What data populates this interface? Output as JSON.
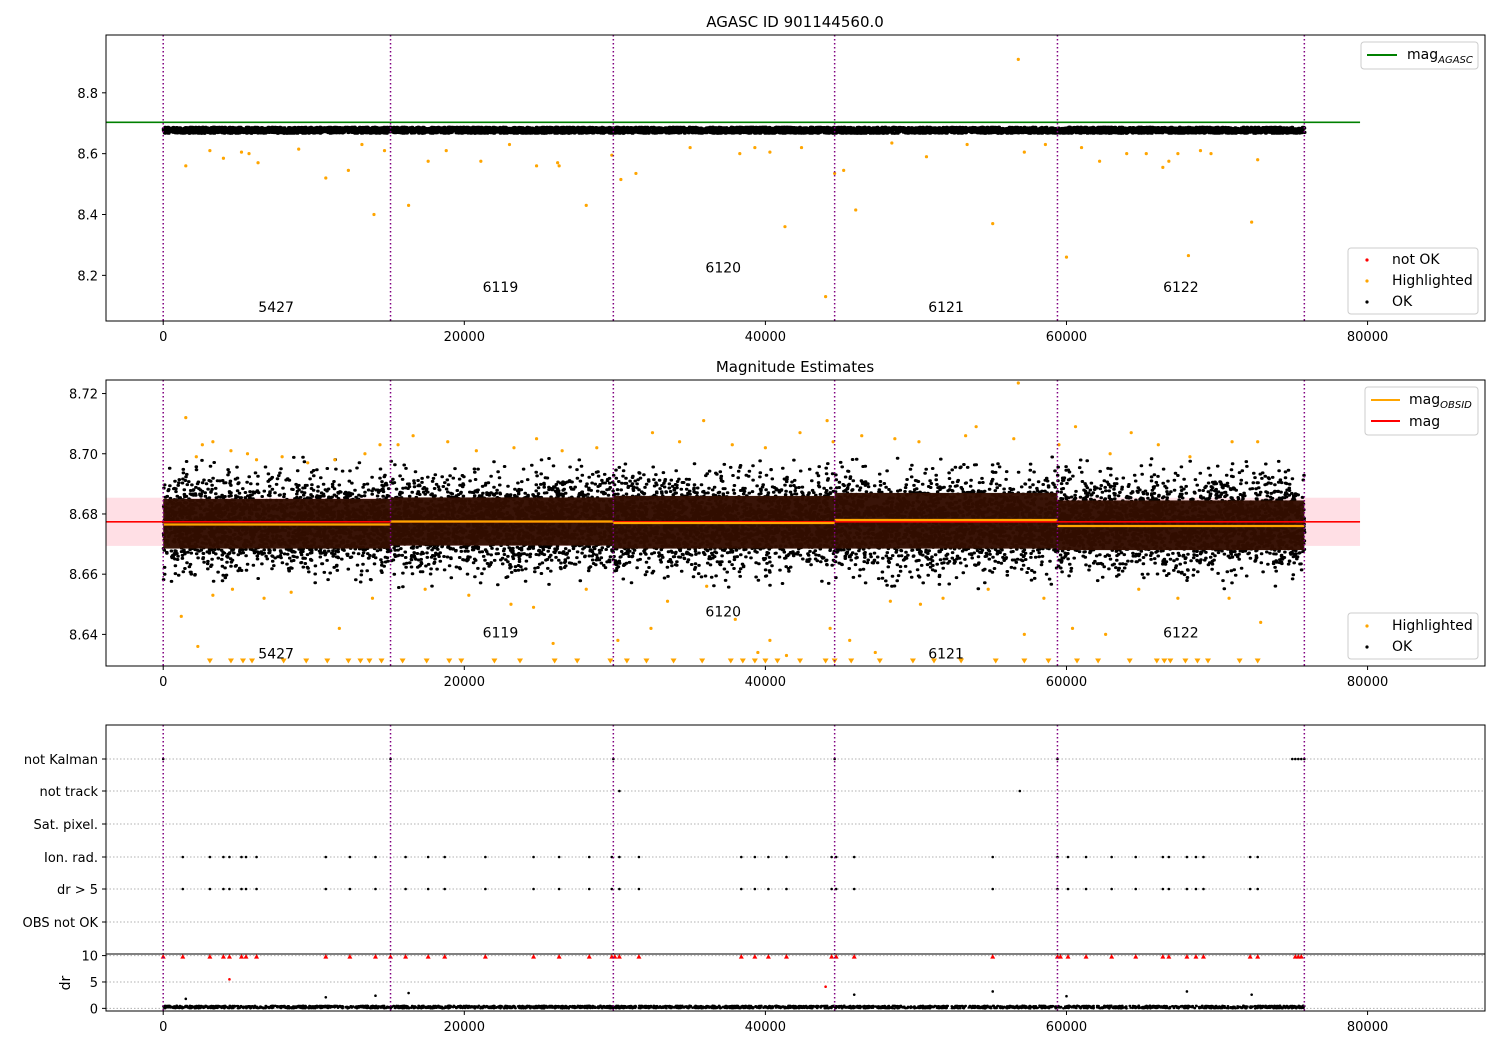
{
  "chart_data": [
    {
      "type": "scatter",
      "title": "AGASC ID 901144560.0",
      "xlim": [
        -3800,
        87800
      ],
      "ylim": [
        8.05,
        8.99
      ],
      "yticks": [
        8.2,
        8.4,
        8.6,
        8.8
      ],
      "xticks": [
        0,
        20000,
        40000,
        60000,
        80000
      ],
      "obs_boundaries": [
        0,
        15100,
        29900,
        44600,
        59400,
        75800
      ],
      "obsid_labels": [
        {
          "text": "5427",
          "x": 7500,
          "y": 8.08
        },
        {
          "text": "6119",
          "x": 22400,
          "y": 8.145
        },
        {
          "text": "6120",
          "x": 37200,
          "y": 8.21
        },
        {
          "text": "6121",
          "x": 52000,
          "y": 8.08
        },
        {
          "text": "6122",
          "x": 67600,
          "y": 8.145
        }
      ],
      "reference_line": {
        "name": "mag",
        "sub": "AGASC",
        "y": 8.703,
        "x": [
          -3800,
          79500
        ],
        "color": "#008000"
      },
      "ok_band": {
        "x": [
          0,
          75800
        ],
        "center": 8.677,
        "half_width": 0.01,
        "color": "#000000"
      },
      "highlighted_points": [
        [
          1500,
          8.56
        ],
        [
          3100,
          8.61
        ],
        [
          4000,
          8.585
        ],
        [
          5200,
          8.605
        ],
        [
          5700,
          8.6
        ],
        [
          6300,
          8.57
        ],
        [
          9000,
          8.615
        ],
        [
          10800,
          8.52
        ],
        [
          12300,
          8.545
        ],
        [
          13200,
          8.63
        ],
        [
          14000,
          8.4
        ],
        [
          14700,
          8.61
        ],
        [
          16300,
          8.43
        ],
        [
          17600,
          8.575
        ],
        [
          18800,
          8.61
        ],
        [
          21100,
          8.575
        ],
        [
          23000,
          8.63
        ],
        [
          24800,
          8.56
        ],
        [
          26200,
          8.57
        ],
        [
          26300,
          8.56
        ],
        [
          28100,
          8.43
        ],
        [
          29800,
          8.595
        ],
        [
          30400,
          8.515
        ],
        [
          31400,
          8.535
        ],
        [
          35000,
          8.62
        ],
        [
          38300,
          8.6
        ],
        [
          39300,
          8.62
        ],
        [
          40300,
          8.605
        ],
        [
          41300,
          8.36
        ],
        [
          42400,
          8.62
        ],
        [
          44000,
          8.13
        ],
        [
          44600,
          8.535
        ],
        [
          45200,
          8.545
        ],
        [
          46000,
          8.415
        ],
        [
          48400,
          8.635
        ],
        [
          50700,
          8.59
        ],
        [
          53400,
          8.63
        ],
        [
          55100,
          8.37
        ],
        [
          56800,
          8.91
        ],
        [
          57200,
          8.605
        ],
        [
          58600,
          8.63
        ],
        [
          60000,
          8.26
        ],
        [
          61000,
          8.62
        ],
        [
          62200,
          8.575
        ],
        [
          64000,
          8.6
        ],
        [
          65300,
          8.6
        ],
        [
          66400,
          8.555
        ],
        [
          66800,
          8.575
        ],
        [
          67400,
          8.6
        ],
        [
          68100,
          8.265
        ],
        [
          68900,
          8.61
        ],
        [
          69600,
          8.6
        ],
        [
          72300,
          8.375
        ],
        [
          72700,
          8.58
        ]
      ],
      "legend_lines": [
        "mag"
      ],
      "legend_points": [
        "not OK",
        "Highlighted",
        "OK"
      ],
      "colors": {
        "ok": "#000000",
        "highlighted": "#FFA500",
        "not_ok": "#FF0000"
      }
    },
    {
      "type": "scatter",
      "title": "Magnitude Estimates",
      "xlim": [
        -3800,
        87800
      ],
      "ylim": [
        8.6295,
        8.7245
      ],
      "yticks": [
        8.64,
        8.66,
        8.68,
        8.7,
        8.72
      ],
      "xticks": [
        0,
        20000,
        40000,
        60000,
        80000
      ],
      "obs_boundaries": [
        0,
        15100,
        29900,
        44600,
        59400,
        75800
      ],
      "obsid_labels": [
        {
          "text": "5427",
          "x": 7500,
          "y": 8.632
        },
        {
          "text": "6119",
          "x": 22400,
          "y": 8.639
        },
        {
          "text": "6120",
          "x": 37200,
          "y": 8.646
        },
        {
          "text": "6121",
          "x": 52000,
          "y": 8.632
        },
        {
          "text": "6122",
          "x": 67600,
          "y": 8.639
        }
      ],
      "mag_line": {
        "name": "mag",
        "y": 8.6774,
        "band": [
          8.6694,
          8.6854
        ],
        "x": [
          -3800,
          79500
        ],
        "color": "#FF0000"
      },
      "obsid_segments": [
        {
          "x": [
            0,
            15100
          ],
          "mean": 8.6765,
          "low": 8.6685,
          "high": 8.685
        },
        {
          "x": [
            15100,
            29900
          ],
          "mean": 8.6775,
          "low": 8.6695,
          "high": 8.6855
        },
        {
          "x": [
            29900,
            44600
          ],
          "mean": 8.677,
          "low": 8.6685,
          "high": 8.686
        },
        {
          "x": [
            44600,
            59400
          ],
          "mean": 8.678,
          "low": 8.6685,
          "high": 8.687
        },
        {
          "x": [
            59400,
            75800
          ],
          "mean": 8.676,
          "low": 8.668,
          "high": 8.6845
        }
      ],
      "scatter_band": {
        "x": [
          0,
          75800
        ],
        "center": 8.677,
        "half_width": 0.018
      },
      "highlighted_points": [
        [
          1500,
          8.712
        ],
        [
          2200,
          8.699
        ],
        [
          2600,
          8.703
        ],
        [
          3300,
          8.704
        ],
        [
          4500,
          8.701
        ],
        [
          5600,
          8.7
        ],
        [
          6200,
          8.698
        ],
        [
          7900,
          8.699
        ],
        [
          9600,
          8.697
        ],
        [
          11400,
          8.698
        ],
        [
          13400,
          8.7
        ],
        [
          14400,
          8.703
        ],
        [
          15600,
          8.703
        ],
        [
          16600,
          8.706
        ],
        [
          18900,
          8.704
        ],
        [
          20800,
          8.701
        ],
        [
          23300,
          8.702
        ],
        [
          24800,
          8.705
        ],
        [
          26500,
          8.701
        ],
        [
          28800,
          8.702
        ],
        [
          32500,
          8.707
        ],
        [
          34300,
          8.704
        ],
        [
          35900,
          8.711
        ],
        [
          37800,
          8.703
        ],
        [
          40000,
          8.702
        ],
        [
          42300,
          8.707
        ],
        [
          44100,
          8.711
        ],
        [
          44500,
          8.704
        ],
        [
          46400,
          8.706
        ],
        [
          48600,
          8.705
        ],
        [
          50200,
          8.704
        ],
        [
          53300,
          8.706
        ],
        [
          54000,
          8.709
        ],
        [
          56500,
          8.705
        ],
        [
          56800,
          8.7235
        ],
        [
          59500,
          8.703
        ],
        [
          60600,
          8.709
        ],
        [
          62900,
          8.7
        ],
        [
          64300,
          8.707
        ],
        [
          66100,
          8.703
        ],
        [
          68200,
          8.699
        ],
        [
          71000,
          8.704
        ],
        [
          72700,
          8.704
        ],
        [
          1200,
          8.646
        ],
        [
          2300,
          8.636
        ],
        [
          3300,
          8.653
        ],
        [
          4600,
          8.655
        ],
        [
          6700,
          8.652
        ],
        [
          8500,
          8.654
        ],
        [
          11700,
          8.642
        ],
        [
          13900,
          8.652
        ],
        [
          17400,
          8.655
        ],
        [
          20300,
          8.653
        ],
        [
          23100,
          8.65
        ],
        [
          24600,
          8.649
        ],
        [
          25900,
          8.637
        ],
        [
          28100,
          8.655
        ],
        [
          30200,
          8.638
        ],
        [
          32400,
          8.642
        ],
        [
          33500,
          8.651
        ],
        [
          36100,
          8.656
        ],
        [
          38000,
          8.645
        ],
        [
          39500,
          8.634
        ],
        [
          40300,
          8.638
        ],
        [
          41400,
          8.633
        ],
        [
          44300,
          8.642
        ],
        [
          45600,
          8.638
        ],
        [
          47300,
          8.634
        ],
        [
          48300,
          8.651
        ],
        [
          50300,
          8.65
        ],
        [
          51800,
          8.652
        ],
        [
          54800,
          8.655
        ],
        [
          57200,
          8.64
        ],
        [
          58500,
          8.652
        ],
        [
          60400,
          8.642
        ],
        [
          62600,
          8.64
        ],
        [
          64800,
          8.655
        ],
        [
          67400,
          8.652
        ],
        [
          70800,
          8.652
        ],
        [
          72900,
          8.644
        ]
      ],
      "clipped_low_x": [
        3100,
        4500,
        5300,
        5900,
        8000,
        9500,
        10900,
        12300,
        13100,
        13700,
        14500,
        15900,
        17500,
        19000,
        19800,
        22000,
        23700,
        26000,
        27500,
        29700,
        30800,
        32100,
        33900,
        35800,
        37700,
        38500,
        39300,
        40000,
        40800,
        42300,
        44000,
        44600,
        45700,
        47600,
        49800,
        51200,
        53000,
        55300,
        57200,
        58800,
        60700,
        62100,
        64200,
        66000,
        66500,
        66900,
        67900,
        68700,
        69400,
        71500,
        72700
      ],
      "clipped_low_y": 8.631,
      "legend_lines": [
        "mag",
        "mag"
      ],
      "legend_line_subs": [
        "OBSID",
        ""
      ],
      "legend_points": [
        "Highlighted",
        "OK"
      ],
      "colors": {
        "ok": "#000000",
        "highlighted": "#FFA500",
        "obsid_line": "#FFA500",
        "mag_line": "#FF0000",
        "band_fill": "#FFC0CB",
        "segment_fill": "#330D00"
      }
    },
    {
      "type": "scatter",
      "title": "",
      "xlim": [
        -3800,
        87800
      ],
      "xticks": [
        0,
        20000,
        40000,
        60000,
        80000
      ],
      "obs_boundaries": [
        0,
        15100,
        29900,
        44600,
        59400,
        75800
      ],
      "flag_labels": [
        "not Kalman",
        "not track",
        "Sat. pixel.",
        "Ion. rad.",
        "dr > 5",
        "OBS not OK"
      ],
      "flag_points": {
        "not Kalman": [
          0,
          15100,
          29900,
          44600,
          59400,
          75000,
          75200,
          75400,
          75600,
          75800
        ],
        "not track": [
          30300,
          56900
        ],
        "Sat. pixel.": [],
        "Ion. rad.": [
          1300,
          3100,
          4000,
          4400,
          5200,
          5500,
          6200,
          10800,
          12400,
          14100,
          16100,
          17600,
          18700,
          21400,
          24600,
          26300,
          28300,
          29800,
          30300,
          31600,
          38400,
          39300,
          40200,
          41400,
          44400,
          44700,
          45900,
          55100,
          59400,
          60100,
          61300,
          63000,
          64600,
          66400,
          66800,
          68000,
          68600,
          69100,
          72200,
          72700
        ],
        "dr > 5": [
          1300,
          3100,
          4000,
          4400,
          5200,
          5500,
          6200,
          10800,
          12400,
          14100,
          16100,
          17600,
          18700,
          21400,
          24600,
          26300,
          28300,
          29800,
          30300,
          31600,
          38400,
          39300,
          40200,
          41400,
          44400,
          44700,
          45900,
          55100,
          59400,
          60100,
          61300,
          63000,
          64600,
          66400,
          66800,
          68000,
          68600,
          69100,
          72200,
          72700
        ],
        "OBS not OK": []
      },
      "ylabel": "dr",
      "dr_ylim": [
        -0.5,
        10.3
      ],
      "dr_yticks": [
        0,
        5,
        10
      ],
      "dr_clipped_y": 9.8,
      "dr_clipped_x": [
        0,
        1300,
        3100,
        4000,
        4400,
        5200,
        5500,
        6200,
        10800,
        12400,
        14100,
        15100,
        16100,
        17600,
        18700,
        21400,
        24600,
        26300,
        28300,
        29800,
        30000,
        30300,
        31600,
        38400,
        39300,
        40200,
        41400,
        44400,
        44700,
        45900,
        55100,
        59400,
        59600,
        60100,
        61300,
        63000,
        64600,
        66400,
        66800,
        68000,
        68600,
        69100,
        72200,
        72700,
        75200,
        75400,
        75600
      ],
      "dr_outliers": [
        [
          4400,
          5.5
        ],
        [
          1500,
          1.8
        ],
        [
          10800,
          2.1
        ],
        [
          14100,
          2.4
        ],
        [
          16300,
          2.9
        ],
        [
          44000,
          4.1
        ],
        [
          45900,
          2.6
        ],
        [
          55100,
          3.2
        ],
        [
          60000,
          2.3
        ],
        [
          68000,
          3.2
        ],
        [
          72300,
          2.6
        ]
      ],
      "colors": {
        "ok": "#000000",
        "not_ok": "#FF0000",
        "boundary": "#800080"
      }
    }
  ]
}
